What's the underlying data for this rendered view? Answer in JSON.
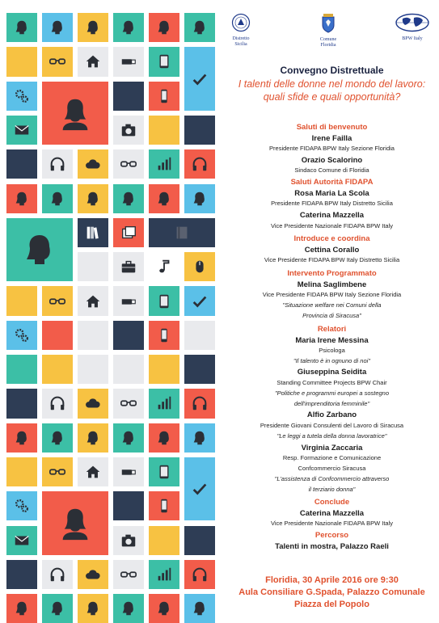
{
  "logos": [
    {
      "name": "Distretto Sicilia",
      "lines": [
        "Distretto",
        "Sicilia"
      ],
      "icon": "fidapa-emblem-icon"
    },
    {
      "name": "Comune Floridia",
      "lines": [
        "Comune",
        "Floridia"
      ],
      "icon": "coat-of-arms-icon"
    },
    {
      "name": "BPW Italy",
      "lines": [
        "BPW Italy"
      ],
      "icon": "globe-icon"
    }
  ],
  "event": {
    "type": "Convegno Distrettuale",
    "headline_1": "I talenti delle donne nel mondo del lavoro:",
    "headline_2": "quali sfide e quali opportunità?"
  },
  "program": [
    {
      "kind": "section",
      "text": "Saluti di benvenuto"
    },
    {
      "kind": "name",
      "text": "Irene Failla"
    },
    {
      "kind": "role",
      "text": "Presidente FIDAPA BPW Italy Sezione Floridia"
    },
    {
      "kind": "name",
      "text": "Orazio Scalorino"
    },
    {
      "kind": "role",
      "text": "Sindaco Comune di Floridia"
    },
    {
      "kind": "section",
      "text": "Saluti Autorità FIDAPA"
    },
    {
      "kind": "name",
      "text": "Rosa Maria La Scola"
    },
    {
      "kind": "role",
      "text": "Presidente FIDAPA BPW Italy Distretto Sicilia"
    },
    {
      "kind": "name",
      "text": "Caterina Mazzella"
    },
    {
      "kind": "role",
      "text": "Vice Presidente Nazionale FIDAPA BPW Italy"
    },
    {
      "kind": "section",
      "text": "Introduce e coordina"
    },
    {
      "kind": "name",
      "text": "Cettina Corallo"
    },
    {
      "kind": "role",
      "text": "Vice Presidente FIDAPA BPW Italy Distretto Sicilia"
    },
    {
      "kind": "section",
      "text": "Intervento Programmato"
    },
    {
      "kind": "name",
      "text": "Melina Saglimbene"
    },
    {
      "kind": "role",
      "text": "Vice Presidente FIDAPA BPW Italy Sezione Floridia"
    },
    {
      "kind": "quote",
      "text": "\"Situazione welfare nei Comuni della"
    },
    {
      "kind": "quote",
      "text": "Provincia di Siracusa\""
    },
    {
      "kind": "section",
      "text": "Relatori"
    },
    {
      "kind": "name",
      "text": "Maria Irene Messina"
    },
    {
      "kind": "role",
      "text": "Psicologa"
    },
    {
      "kind": "quote",
      "text": "\"Il talento è in ognuno di noi\""
    },
    {
      "kind": "name",
      "text": "Giuseppina Seidita"
    },
    {
      "kind": "role",
      "text": "Standing Committee Projects BPW Chair"
    },
    {
      "kind": "quote",
      "text": "\"Politiche e programmi europei a sostegno"
    },
    {
      "kind": "quote",
      "text": "dell'imprenditoria femminile\""
    },
    {
      "kind": "name",
      "text": "Alfio Zarbano"
    },
    {
      "kind": "role",
      "text": "Presidente Giovani Consulenti del Lavoro di Siracusa"
    },
    {
      "kind": "quote",
      "text": "\"Le leggi a tutela della donna lavoratrice\""
    },
    {
      "kind": "name",
      "text": "Virginia Zaccaria"
    },
    {
      "kind": "role",
      "text": "Resp. Formazione e Comunicazione"
    },
    {
      "kind": "role",
      "text": "Confcommercio Siracusa"
    },
    {
      "kind": "quote",
      "text": "\"L'assistenza di Confcommercio attraverso"
    },
    {
      "kind": "quote",
      "text": "il terziario donna\""
    },
    {
      "kind": "section",
      "text": "Conclude"
    },
    {
      "kind": "name",
      "text": "Caterina Mazzella"
    },
    {
      "kind": "role",
      "text": "Vice Presidente Nazionale FIDAPA BPW Italy"
    },
    {
      "kind": "section",
      "text": "Percorso"
    },
    {
      "kind": "name",
      "text": "Talenti in mostra, Palazzo Raeli"
    }
  ],
  "footer": {
    "line_1": "Floridia, 30 Aprile 2016 ore 9:30",
    "line_2": "Aula Consiliare G.Spada, Palazzo Comunale",
    "line_3": "Piazza del Popolo"
  },
  "colors": {
    "teal": "#3cbfa6",
    "yellow": "#f7c242",
    "coral": "#f25c4a",
    "sky": "#5bc0e8",
    "navy": "#2e3d55",
    "lightgray": "#e9eaed",
    "accent_text": "#e0522f"
  },
  "grid_icons": [
    "woman-head-icon",
    "glasses-icon",
    "house-icon",
    "usb-icon",
    "tablet-icon",
    "checkmark-icon",
    "gears-icon",
    "woman-portrait-icon",
    "phone-icon",
    "envelope-icon",
    "camera-icon",
    "headphones-icon",
    "cloud-icon",
    "signal-bars-icon",
    "books-icon",
    "photos-icon",
    "briefcase-icon",
    "music-note-icon",
    "mouse-icon"
  ]
}
